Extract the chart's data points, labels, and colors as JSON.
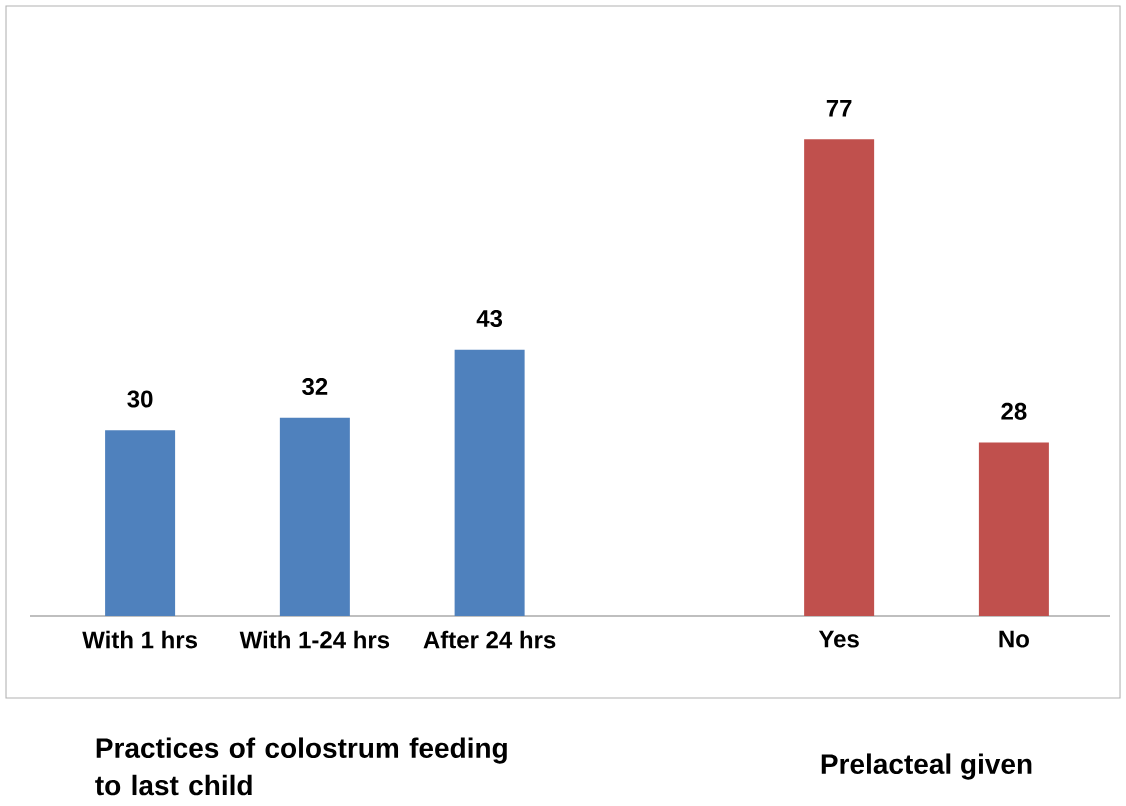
{
  "chart_data": {
    "type": "bar",
    "categories": [
      "With 1 hrs",
      "With 1-24 hrs",
      "After 24 hrs",
      null,
      "Yes",
      "No"
    ],
    "values": [
      30,
      32,
      43,
      null,
      77,
      28
    ],
    "colors": [
      "#4f81bd",
      "#4f81bd",
      "#4f81bd",
      null,
      "#c0504d",
      "#c0504d"
    ],
    "data_labels": true,
    "annotations": [
      "Practices of colostrum feeding to last child",
      "Prelacteal given"
    ]
  }
}
